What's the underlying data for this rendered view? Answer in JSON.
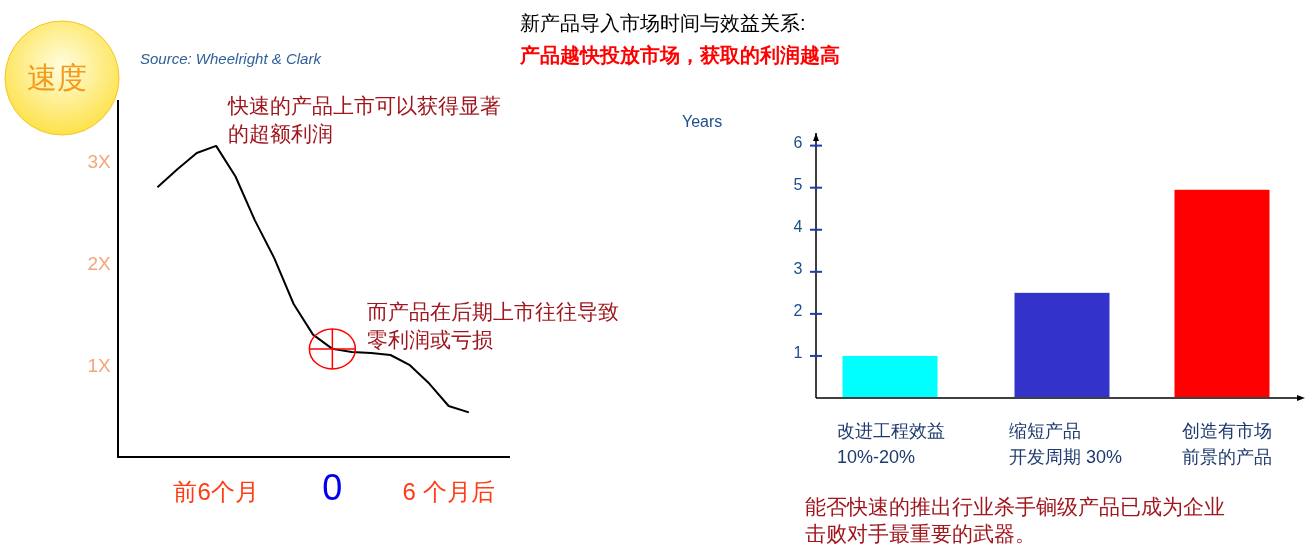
{
  "chart_data": [
    {
      "type": "line",
      "ylabel": "速度",
      "categories": [
        null,
        null,
        null,
        "前6个月",
        null,
        null,
        null,
        null,
        null,
        "0",
        null,
        null,
        null,
        null,
        null,
        "6 个月后",
        null
      ],
      "series": [
        {
          "color": "#000000",
          "values": [
            2.75,
            2.92,
            3.08,
            3.15,
            2.85,
            2.42,
            2.05,
            1.6,
            1.3,
            1.16,
            1.13,
            1.12,
            1.1,
            1.0,
            0.82,
            0.6,
            0.54
          ]
        }
      ],
      "ylim": [
        0.1,
        3.6
      ],
      "yticks": [
        {
          "value": 1,
          "label": "1X"
        },
        {
          "value": 2,
          "label": "2X"
        },
        {
          "value": 3,
          "label": "3X"
        }
      ],
      "annotations": [
        "Source: Wheelright & Clark",
        {
          "text": "快速的产品上市可以获得显著的超额利润",
          "x": "前6个月",
          "y": 3.15
        },
        {
          "text": "而产品在后期上市往往导致零利润或亏损",
          "x": "0",
          "y": 1.16
        }
      ]
    },
    {
      "type": "bar",
      "title": "新产品导入市场时间与效益关系:",
      "subtitle": "产品越快投放市场，获取的利润越高",
      "ylabel": "Years",
      "categories": [
        "改进工程效益\n10%-20%",
        "缩短产品开发周期 30%",
        "创造有市场前景的产品"
      ],
      "values": [
        1.0,
        2.5,
        4.95
      ],
      "colors": [
        "#00ffff",
        "#3333cc",
        "#ff0000"
      ],
      "ylim": [
        0,
        6.3
      ],
      "yticks": [
        1,
        2,
        3,
        4,
        5,
        6
      ],
      "annotations": [
        "能否快速的推出行业杀手锏级产品已成为企业击败对手最重要的武器。"
      ]
    }
  ]
}
